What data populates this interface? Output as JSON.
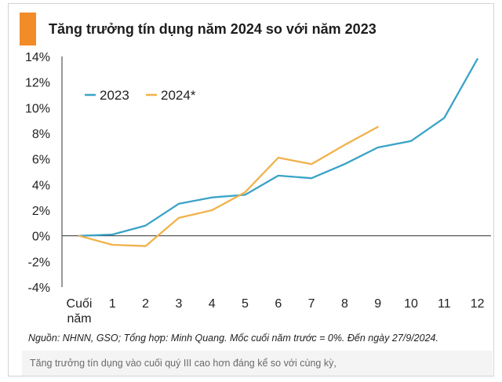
{
  "colors": {
    "accent": "#f28c28",
    "series_2023": "#3aa3c7",
    "series_2024": "#f0b24a",
    "axis": "#333333",
    "gridline": "#d9d9d9"
  },
  "chart_data": {
    "type": "line",
    "title": "Tăng trưởng tín dụng năm 2024 so với năm 2023",
    "categories": [
      "Cuối năm",
      "1",
      "2",
      "3",
      "4",
      "5",
      "6",
      "7",
      "8",
      "9",
      "10",
      "11",
      "12"
    ],
    "y_ticks": [
      "14%",
      "12%",
      "10%",
      "8%",
      "6%",
      "4%",
      "2%",
      "0%",
      "-2%",
      "-4%"
    ],
    "ylim": [
      -4,
      14
    ],
    "y_unit": "%",
    "legend_position": "top-left",
    "grid": false,
    "series": [
      {
        "name": "2023",
        "values": [
          0,
          0.1,
          0.8,
          2.5,
          3.0,
          3.2,
          4.7,
          4.5,
          5.6,
          6.9,
          7.4,
          9.2,
          13.8
        ]
      },
      {
        "name": "2024*",
        "values": [
          0,
          -0.7,
          -0.8,
          1.4,
          2.0,
          3.4,
          6.1,
          5.6,
          7.1,
          8.5,
          null,
          null,
          null
        ]
      }
    ]
  },
  "source_note": "Nguồn: NHNN, GSO; Tổng hợp: Minh Quang. Mốc cuối năm trước = 0%. Đến ngày 27/9/2024.",
  "caption": "Tăng trưởng tín dụng vào cuối quý III cao hơn đáng kể so với cùng kỳ,"
}
